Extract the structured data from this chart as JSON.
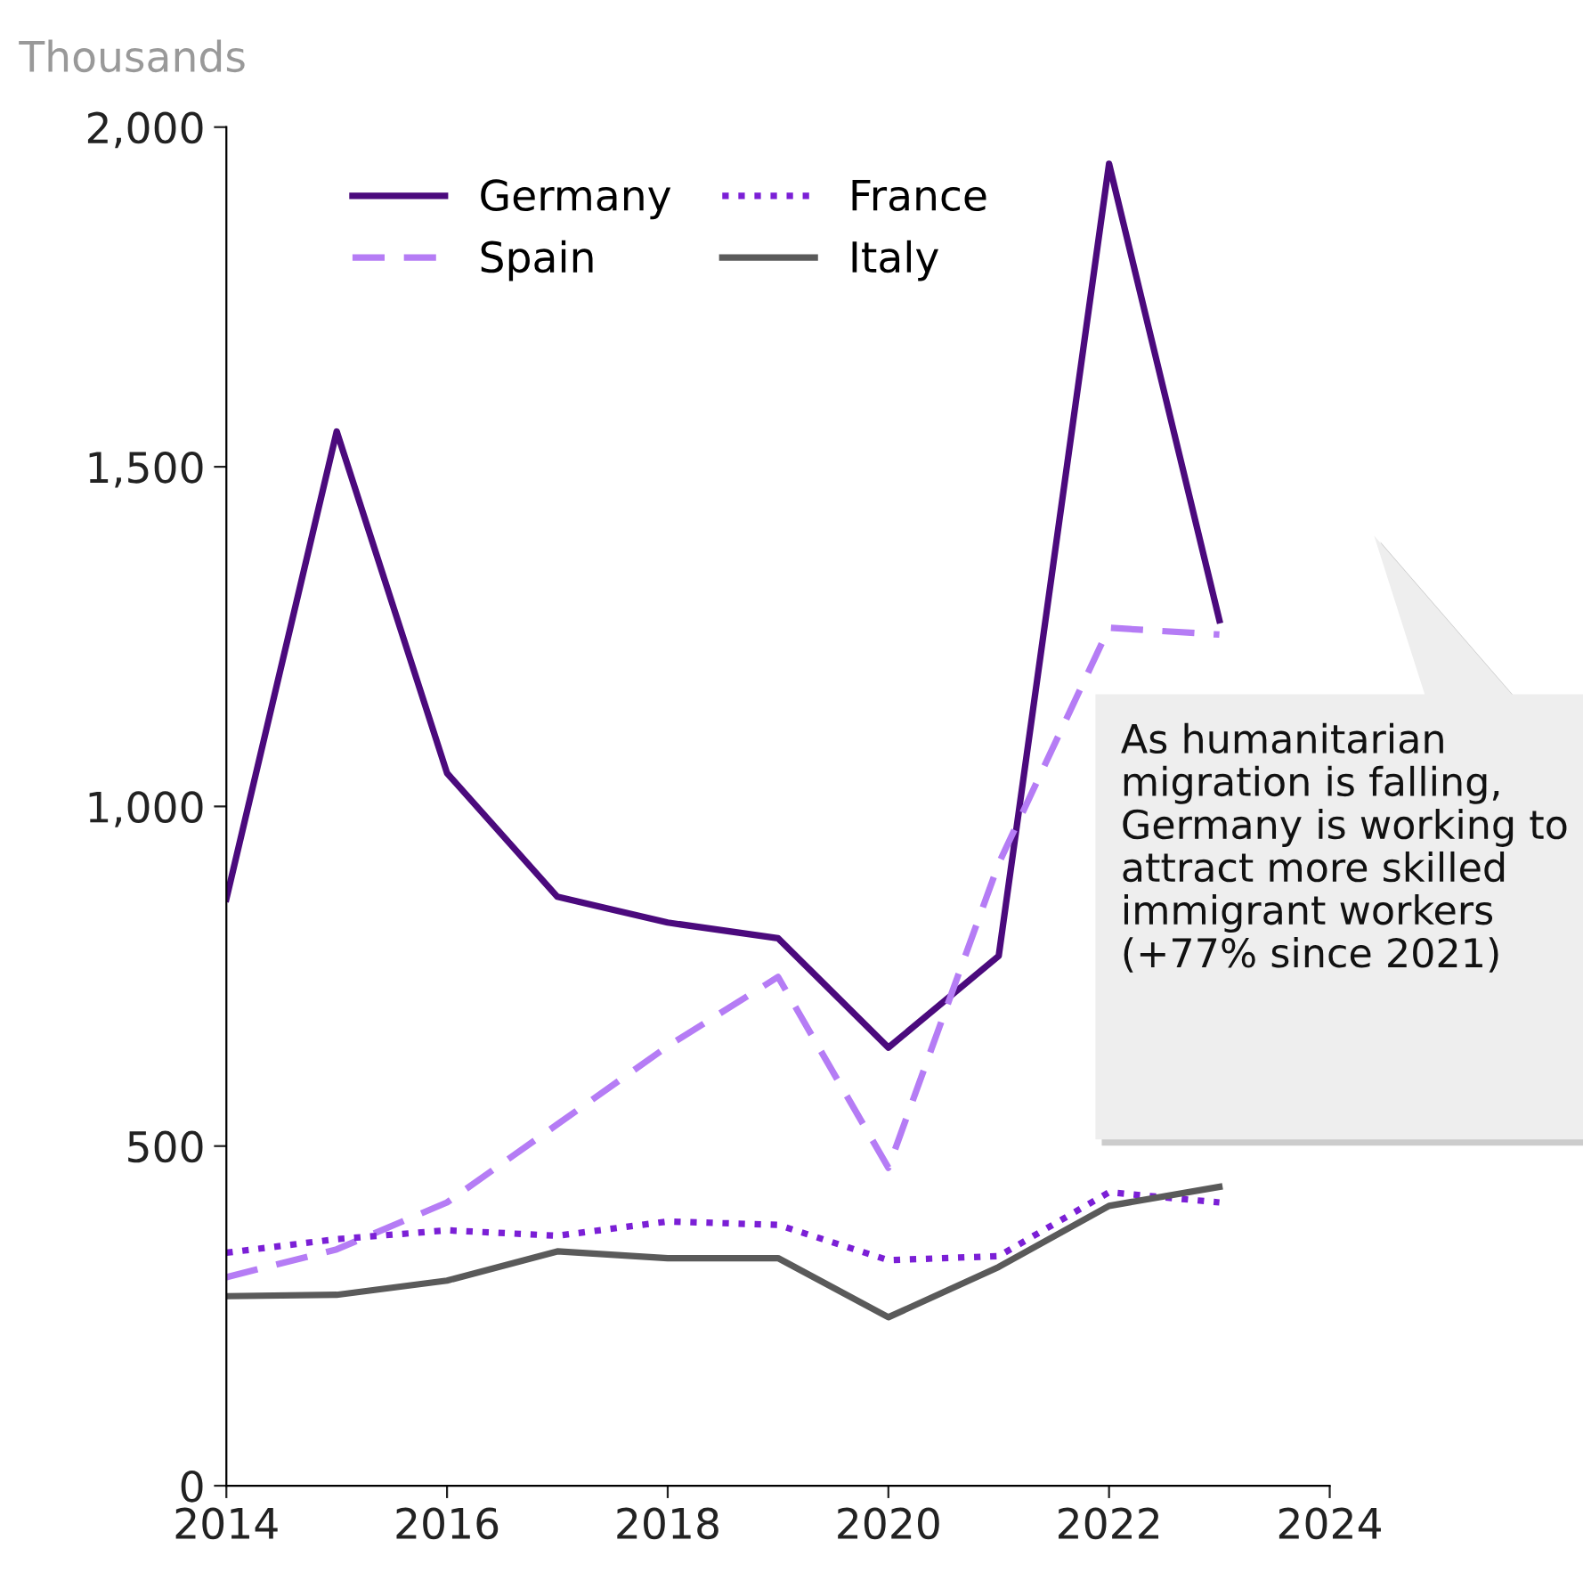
{
  "chart_data": {
    "type": "line",
    "ylabel": "Thousands",
    "x": [
      2014,
      2015,
      2016,
      2017,
      2018,
      2019,
      2020,
      2021,
      2022,
      2023
    ],
    "xlim": [
      2014,
      2024
    ],
    "xticks": [
      2014,
      2016,
      2018,
      2020,
      2022,
      2024
    ],
    "ylim": [
      0,
      2000
    ],
    "yticks": [
      {
        "value": 0,
        "label": "0"
      },
      {
        "value": 500,
        "label": "500"
      },
      {
        "value": 1000,
        "label": "1,000"
      },
      {
        "value": 1500,
        "label": "1,500"
      },
      {
        "value": 2000,
        "label": "2,000"
      }
    ],
    "series": [
      {
        "name": "Germany",
        "color": "#4b0a7d",
        "line_style": "solid",
        "values": [
          864,
          1552,
          1049,
          867,
          829,
          806,
          645,
          780,
          1946,
          1274
        ]
      },
      {
        "name": "Spain",
        "color": "#b57cf5",
        "line_style": "dashed",
        "values": [
          307,
          348,
          417,
          532,
          647,
          749,
          468,
          916,
          1263,
          1253
        ]
      },
      {
        "name": "France",
        "color": "#7b1fd6",
        "line_style": "dotted",
        "values": [
          343,
          363,
          376,
          368,
          389,
          384,
          332,
          338,
          432,
          417
        ]
      },
      {
        "name": "Italy",
        "color": "#5a5a5a",
        "line_style": "solid",
        "values": [
          279,
          281,
          302,
          345,
          335,
          335,
          248,
          322,
          412,
          440
        ]
      }
    ],
    "legend": "top",
    "grid": false,
    "marker": "none",
    "annotations": [
      "As humanitarian migration is falling, Germany is working to attract more skilled immigrant workers (+77% since 2021)"
    ]
  }
}
